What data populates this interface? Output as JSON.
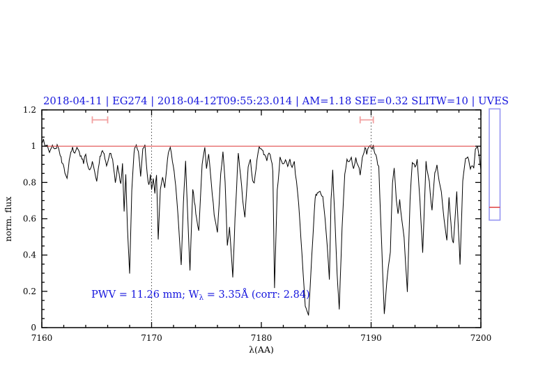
{
  "page": {
    "background": "#ffffff"
  },
  "chart_data": {
    "type": "line",
    "title": "2018-04-11 | EG274 | 2018-04-12T09:55:23.014 | AM=1.18 SEE=0.32 SLITW=10 | UVES",
    "title_color": "#1414dd",
    "xlabel": "λ(AA)",
    "ylabel": "norm. flux",
    "xlim": [
      7160,
      7200
    ],
    "ylim": [
      0,
      1.2
    ],
    "x_major_ticks": [
      7160,
      7170,
      7180,
      7190,
      7200
    ],
    "x_minor_step": 2,
    "y_major_ticks": [
      0,
      0.2,
      0.4,
      0.6,
      0.8,
      1,
      1.2
    ],
    "y_minor_step": 0.05,
    "grid": false,
    "reference_lines": {
      "continuum_y": 1.0,
      "continuum_color": "#e04b4b",
      "dotted_guides_x": [
        7170,
        7190
      ],
      "dotted_color": "#444444"
    },
    "band_markers": {
      "y_flux": 1.145,
      "color": "#f2a0a0",
      "items": [
        {
          "center_aa": 7165.3,
          "half_width_aa": 0.7
        },
        {
          "center_aa": 7189.6,
          "half_width_aa": 0.6
        }
      ]
    },
    "annotation": {
      "text_before_sub": "PWV  =  11.26  mm;  W",
      "sub": "λ",
      "text_after_sub": "  =  3.35Å  (corr: 2.84)",
      "color": "#1414dd",
      "x_aa": 7164.5,
      "y_flux": 0.17
    },
    "side_gauge": {
      "border_color": "#9595f2",
      "marker_color": "#e04040",
      "marker_position_from_top": 0.885
    },
    "noise_amplitude": 0.011,
    "series": [
      {
        "name": "spectrum",
        "color": "#000000",
        "points": [
          [
            7160.0,
            1.015
          ],
          [
            7160.15,
            1.03
          ],
          [
            7160.3,
            0.995
          ],
          [
            7160.5,
            1.005
          ],
          [
            7160.7,
            0.975
          ],
          [
            7160.9,
            1.0
          ],
          [
            7161.1,
            0.985
          ],
          [
            7161.4,
            1.0
          ],
          [
            7161.6,
            0.97
          ],
          [
            7161.9,
            0.9
          ],
          [
            7162.1,
            0.86
          ],
          [
            7162.3,
            0.82
          ],
          [
            7162.5,
            0.93
          ],
          [
            7162.8,
            0.995
          ],
          [
            7163.0,
            0.96
          ],
          [
            7163.2,
            0.99
          ],
          [
            7163.5,
            0.95
          ],
          [
            7163.8,
            0.91
          ],
          [
            7164.0,
            0.96
          ],
          [
            7164.2,
            0.89
          ],
          [
            7164.45,
            0.87
          ],
          [
            7164.6,
            0.92
          ],
          [
            7164.8,
            0.86
          ],
          [
            7165.0,
            0.8
          ],
          [
            7165.3,
            0.95
          ],
          [
            7165.6,
            0.97
          ],
          [
            7165.9,
            0.9
          ],
          [
            7166.2,
            0.96
          ],
          [
            7166.45,
            0.93
          ],
          [
            7166.7,
            0.8
          ],
          [
            7166.9,
            0.89
          ],
          [
            7167.05,
            0.84
          ],
          [
            7167.2,
            0.79
          ],
          [
            7167.35,
            0.9
          ],
          [
            7167.5,
            0.64
          ],
          [
            7167.65,
            0.85
          ],
          [
            7167.8,
            0.55
          ],
          [
            7168.0,
            0.3
          ],
          [
            7168.2,
            0.75
          ],
          [
            7168.4,
            0.97
          ],
          [
            7168.6,
            1.005
          ],
          [
            7168.8,
            0.98
          ],
          [
            7169.0,
            0.83
          ],
          [
            7169.2,
            0.98
          ],
          [
            7169.4,
            1.0
          ],
          [
            7169.6,
            0.85
          ],
          [
            7169.75,
            0.78
          ],
          [
            7169.9,
            0.84
          ],
          [
            7170.0,
            0.76
          ],
          [
            7170.15,
            0.83
          ],
          [
            7170.3,
            0.74
          ],
          [
            7170.45,
            0.85
          ],
          [
            7170.6,
            0.48
          ],
          [
            7170.8,
            0.76
          ],
          [
            7171.0,
            0.83
          ],
          [
            7171.2,
            0.775
          ],
          [
            7171.45,
            0.93
          ],
          [
            7171.7,
            1.0
          ],
          [
            7171.9,
            0.92
          ],
          [
            7172.2,
            0.79
          ],
          [
            7172.4,
            0.62
          ],
          [
            7172.7,
            0.34
          ],
          [
            7172.9,
            0.7
          ],
          [
            7173.1,
            0.92
          ],
          [
            7173.3,
            0.6
          ],
          [
            7173.5,
            0.32
          ],
          [
            7173.75,
            0.77
          ],
          [
            7173.9,
            0.7
          ],
          [
            7174.1,
            0.6
          ],
          [
            7174.3,
            0.53
          ],
          [
            7174.6,
            0.9
          ],
          [
            7174.85,
            0.99
          ],
          [
            7175.0,
            0.88
          ],
          [
            7175.2,
            0.95
          ],
          [
            7175.45,
            0.8
          ],
          [
            7175.7,
            0.62
          ],
          [
            7176.0,
            0.52
          ],
          [
            7176.3,
            0.85
          ],
          [
            7176.5,
            0.97
          ],
          [
            7176.7,
            0.8
          ],
          [
            7176.9,
            0.45
          ],
          [
            7177.1,
            0.55
          ],
          [
            7177.25,
            0.42
          ],
          [
            7177.4,
            0.28
          ],
          [
            7177.6,
            0.6
          ],
          [
            7177.9,
            0.97
          ],
          [
            7178.1,
            0.85
          ],
          [
            7178.3,
            0.7
          ],
          [
            7178.5,
            0.61
          ],
          [
            7178.8,
            0.88
          ],
          [
            7179.0,
            0.93
          ],
          [
            7179.2,
            0.82
          ],
          [
            7179.35,
            0.8
          ],
          [
            7179.6,
            0.92
          ],
          [
            7179.8,
            1.0
          ],
          [
            7180.0,
            0.99
          ],
          [
            7180.3,
            0.95
          ],
          [
            7180.5,
            0.92
          ],
          [
            7180.7,
            0.97
          ],
          [
            7180.9,
            0.93
          ],
          [
            7181.05,
            0.86
          ],
          [
            7181.2,
            0.22
          ],
          [
            7181.45,
            0.75
          ],
          [
            7181.7,
            0.94
          ],
          [
            7182.0,
            0.9
          ],
          [
            7182.2,
            0.93
          ],
          [
            7182.4,
            0.89
          ],
          [
            7182.6,
            0.93
          ],
          [
            7182.8,
            0.88
          ],
          [
            7183.0,
            0.91
          ],
          [
            7183.2,
            0.8
          ],
          [
            7183.4,
            0.68
          ],
          [
            7183.6,
            0.5
          ],
          [
            7183.8,
            0.3
          ],
          [
            7184.0,
            0.12
          ],
          [
            7184.3,
            0.065
          ],
          [
            7184.6,
            0.4
          ],
          [
            7184.9,
            0.72
          ],
          [
            7185.1,
            0.74
          ],
          [
            7185.35,
            0.75
          ],
          [
            7185.6,
            0.72
          ],
          [
            7185.8,
            0.6
          ],
          [
            7186.0,
            0.45
          ],
          [
            7186.2,
            0.26
          ],
          [
            7186.35,
            0.7
          ],
          [
            7186.5,
            0.86
          ],
          [
            7186.7,
            0.6
          ],
          [
            7186.9,
            0.3
          ],
          [
            7187.1,
            0.1
          ],
          [
            7187.35,
            0.55
          ],
          [
            7187.6,
            0.85
          ],
          [
            7187.8,
            0.93
          ],
          [
            7188.0,
            0.91
          ],
          [
            7188.2,
            0.93
          ],
          [
            7188.4,
            0.88
          ],
          [
            7188.6,
            0.93
          ],
          [
            7188.8,
            0.9
          ],
          [
            7189.0,
            0.845
          ],
          [
            7189.2,
            0.93
          ],
          [
            7189.45,
            0.99
          ],
          [
            7189.6,
            0.96
          ],
          [
            7189.8,
            1.005
          ],
          [
            7190.0,
            0.99
          ],
          [
            7190.2,
            1.0
          ],
          [
            7190.5,
            0.93
          ],
          [
            7190.7,
            0.88
          ],
          [
            7190.9,
            0.55
          ],
          [
            7191.2,
            0.076
          ],
          [
            7191.5,
            0.3
          ],
          [
            7191.75,
            0.42
          ],
          [
            7191.95,
            0.8
          ],
          [
            7192.1,
            0.875
          ],
          [
            7192.3,
            0.7
          ],
          [
            7192.45,
            0.62
          ],
          [
            7192.6,
            0.7
          ],
          [
            7192.8,
            0.6
          ],
          [
            7193.0,
            0.5
          ],
          [
            7193.3,
            0.197
          ],
          [
            7193.55,
            0.7
          ],
          [
            7193.75,
            0.92
          ],
          [
            7194.0,
            0.88
          ],
          [
            7194.2,
            0.92
          ],
          [
            7194.45,
            0.7
          ],
          [
            7194.7,
            0.41
          ],
          [
            7195.0,
            0.91
          ],
          [
            7195.3,
            0.8
          ],
          [
            7195.55,
            0.64
          ],
          [
            7195.8,
            0.85
          ],
          [
            7196.0,
            0.9
          ],
          [
            7196.2,
            0.8
          ],
          [
            7196.4,
            0.74
          ],
          [
            7196.65,
            0.6
          ],
          [
            7196.9,
            0.48
          ],
          [
            7197.1,
            0.72
          ],
          [
            7197.35,
            0.5
          ],
          [
            7197.5,
            0.46
          ],
          [
            7197.8,
            0.75
          ],
          [
            7198.1,
            0.35
          ],
          [
            7198.35,
            0.8
          ],
          [
            7198.6,
            0.93
          ],
          [
            7198.8,
            0.94
          ],
          [
            7199.05,
            0.88
          ],
          [
            7199.2,
            0.9
          ],
          [
            7199.35,
            0.88
          ],
          [
            7199.5,
            0.99
          ],
          [
            7199.7,
            1.0
          ],
          [
            7199.85,
            0.95
          ],
          [
            7200.0,
            0.87
          ]
        ]
      }
    ]
  }
}
